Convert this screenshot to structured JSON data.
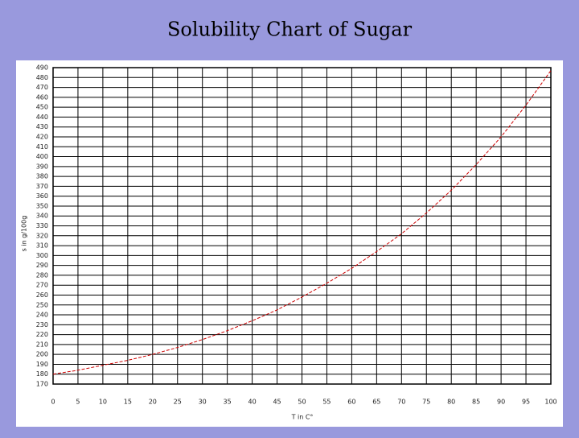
{
  "chart_data": {
    "type": "line",
    "title": "Solubility Chart of Sugar",
    "x_label": "T in C°",
    "y_label": "s in g/100g",
    "x": [
      0,
      5,
      10,
      15,
      20,
      25,
      30,
      35,
      40,
      45,
      50,
      55,
      60,
      65,
      70,
      75,
      80,
      85,
      90,
      95,
      100
    ],
    "series": [
      {
        "color": "#cc0000",
        "values": [
          180,
          184,
          189,
          194,
          200,
          207,
          215,
          224,
          234,
          245,
          258,
          272,
          287,
          304,
          322,
          343,
          366,
          392,
          420,
          452,
          487
        ]
      }
    ],
    "xlim": [
      0,
      100
    ],
    "xticks": [
      0,
      5,
      10,
      15,
      20,
      25,
      30,
      35,
      40,
      45,
      50,
      55,
      60,
      65,
      70,
      75,
      80,
      85,
      90,
      95,
      100
    ],
    "ylim": [
      170,
      490
    ],
    "yticks": [
      170,
      180,
      190,
      200,
      210,
      220,
      230,
      240,
      250,
      260,
      270,
      280,
      290,
      300,
      310,
      320,
      330,
      340,
      350,
      360,
      370,
      380,
      390,
      400,
      410,
      420,
      430,
      440,
      450,
      460,
      470,
      480,
      490
    ],
    "grid": true
  }
}
